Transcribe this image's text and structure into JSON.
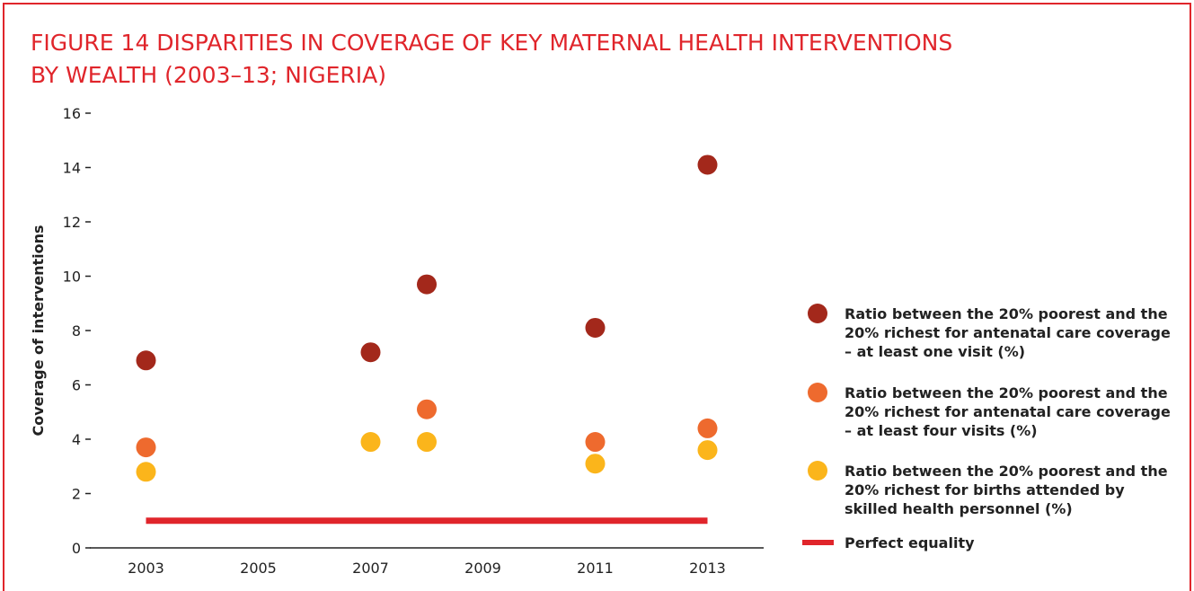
{
  "chart_data": {
    "type": "scatter",
    "title": [
      "FIGURE 14  DISPARITIES IN COVERAGE OF KEY MATERNAL HEALTH INTERVENTIONS",
      "BY WEALTH (2003–13; NIGERIA)"
    ],
    "y_label": "Coverage of interventions",
    "x": [
      2003,
      2007,
      2008,
      2011,
      2013
    ],
    "xlim": [
      2002,
      2014
    ],
    "xticks": [
      2003,
      2005,
      2007,
      2009,
      2011,
      2013
    ],
    "ylim": [
      0,
      16
    ],
    "yticks": [
      0,
      2,
      4,
      6,
      8,
      10,
      12,
      14,
      16
    ],
    "series": [
      {
        "name": "Ratio between the 20% poorest and the 20% richest for antenatal care coverage – at least one visit (%)",
        "color": "#a3281b",
        "values": [
          6.9,
          7.2,
          9.7,
          8.1,
          14.1
        ]
      },
      {
        "name": "Ratio between the 20% poorest and the 20% richest for antenatal care coverage – at least four visits (%)",
        "color": "#ee6a2e",
        "values": [
          3.7,
          null,
          5.1,
          3.9,
          4.4
        ]
      },
      {
        "name": "Ratio between the 20% poorest and the 20% richest for births attended by skilled health personnel (%)",
        "color": "#fbb51b",
        "values": [
          2.8,
          3.9,
          3.9,
          3.1,
          3.6
        ]
      },
      {
        "name": "Perfect equality",
        "type": "line",
        "color": "#e0252b",
        "x": [
          2003,
          2013
        ],
        "values": [
          1,
          1
        ]
      }
    ]
  }
}
